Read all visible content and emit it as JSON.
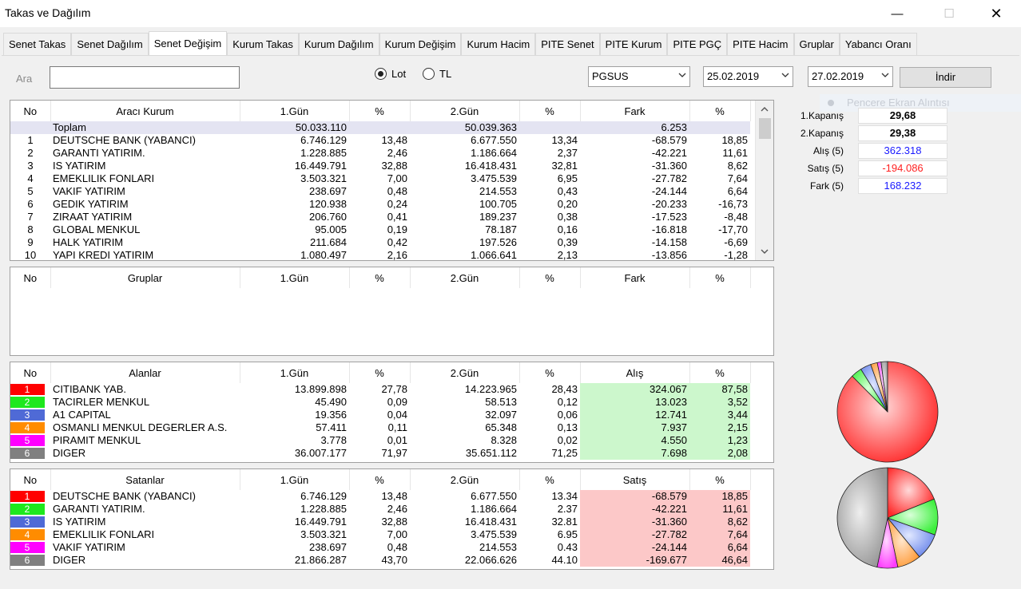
{
  "window": {
    "title": "Takas ve Dağılım",
    "min": "—",
    "max": "☐",
    "close": "✕"
  },
  "tabs": [
    {
      "label": "Senet Takas"
    },
    {
      "label": "Senet Dağılım"
    },
    {
      "label": "Senet Değişim",
      "active": true
    },
    {
      "label": "Kurum Takas"
    },
    {
      "label": "Kurum Dağılım"
    },
    {
      "label": "Kurum Değişim"
    },
    {
      "label": "Kurum Hacim"
    },
    {
      "label": "PITE Senet"
    },
    {
      "label": "PITE Kurum"
    },
    {
      "label": "PITE PGÇ"
    },
    {
      "label": "PITE Hacim"
    },
    {
      "label": "Gruplar"
    },
    {
      "label": "Yabancı Oranı"
    }
  ],
  "search": {
    "label": "Ara",
    "value": ""
  },
  "units": {
    "lot": "Lot",
    "tl": "TL",
    "selected": "lot"
  },
  "symbol": "PGSUS",
  "date1": "25.02.2019",
  "date2": "27.02.2019",
  "download_label": "İndir",
  "ghost_text": "Pencere Ekran Alıntısı",
  "main_table": {
    "headers": [
      "No",
      "Aracı Kurum",
      "1.Gün",
      "%",
      "2.Gün",
      "%",
      "Fark",
      "%"
    ],
    "total": [
      "",
      "Toplam",
      "50.033.110",
      "",
      "50.039.363",
      "",
      "6.253",
      ""
    ],
    "rows": [
      [
        "1",
        "DEUTSCHE BANK (YABANCI)",
        "6.746.129",
        "13,48",
        "6.677.550",
        "13,34",
        "-68.579",
        "18,85"
      ],
      [
        "2",
        "GARANTI YATIRIM.",
        "1.228.885",
        "2,46",
        "1.186.664",
        "2,37",
        "-42.221",
        "11,61"
      ],
      [
        "3",
        "IS YATIRIM",
        "16.449.791",
        "32,88",
        "16.418.431",
        "32,81",
        "-31.360",
        "8,62"
      ],
      [
        "4",
        "EMEKLILIK FONLARI",
        "3.503.321",
        "7,00",
        "3.475.539",
        "6,95",
        "-27.782",
        "7,64"
      ],
      [
        "5",
        "VAKIF YATIRIM",
        "238.697",
        "0,48",
        "214.553",
        "0,43",
        "-24.144",
        "6,64"
      ],
      [
        "6",
        "GEDIK YATIRIM",
        "120.938",
        "0,24",
        "100.705",
        "0,20",
        "-20.233",
        "-16,73"
      ],
      [
        "7",
        "ZIRAAT YATIRIM",
        "206.760",
        "0,41",
        "189.237",
        "0,38",
        "-17.523",
        "-8,48"
      ],
      [
        "8",
        "GLOBAL MENKUL",
        "95.005",
        "0,19",
        "78.187",
        "0,16",
        "-16.818",
        "-17,70"
      ],
      [
        "9",
        "HALK YATIRIM",
        "211.684",
        "0,42",
        "197.526",
        "0,39",
        "-14.158",
        "-6,69"
      ],
      [
        "10",
        "YAPI KREDI YATIRIM",
        "1.080.497",
        "2,16",
        "1.066.641",
        "2,13",
        "-13.856",
        "-1,28"
      ]
    ]
  },
  "groups_table": {
    "headers": [
      "No",
      "Gruplar",
      "1.Gün",
      "%",
      "2.Gün",
      "%",
      "Fark",
      "%"
    ]
  },
  "buyers_table": {
    "headers": [
      "No",
      "Alanlar",
      "1.Gün",
      "%",
      "2.Gün",
      "%",
      "Alış",
      "%"
    ],
    "rows": [
      [
        "1",
        "CITIBANK YAB.",
        "13.899.898",
        "27,78",
        "14.223.965",
        "28,43",
        "324.067",
        "87,58"
      ],
      [
        "2",
        "TACIRLER MENKUL",
        "45.490",
        "0,09",
        "58.513",
        "0,12",
        "13.023",
        "3,52"
      ],
      [
        "3",
        "A1 CAPITAL",
        "19.356",
        "0,04",
        "32.097",
        "0,06",
        "12.741",
        "3,44"
      ],
      [
        "4",
        "OSMANLI MENKUL DEGERLER A.S.",
        "57.411",
        "0,11",
        "65.348",
        "0,13",
        "7.937",
        "2,15"
      ],
      [
        "5",
        "PIRAMIT MENKUL",
        "3.778",
        "0,01",
        "8.328",
        "0,02",
        "4.550",
        "1,23"
      ],
      [
        "6",
        "DIGER",
        "36.007.177",
        "71,97",
        "35.651.112",
        "71,25",
        "7.698",
        "2,08"
      ]
    ]
  },
  "sellers_table": {
    "headers": [
      "No",
      "Satanlar",
      "1.Gün",
      "%",
      "2.Gün",
      "%",
      "Satış",
      "%"
    ],
    "rows": [
      [
        "1",
        "DEUTSCHE BANK (YABANCI)",
        "6.746.129",
        "13,48",
        "6.677.550",
        "13.34",
        "-68.579",
        "18,85"
      ],
      [
        "2",
        "GARANTI YATIRIM.",
        "1.228.885",
        "2,46",
        "1.186.664",
        "2.37",
        "-42.221",
        "11,61"
      ],
      [
        "3",
        "IS YATIRIM",
        "16.449.791",
        "32,88",
        "16.418.431",
        "32.81",
        "-31.360",
        "8,62"
      ],
      [
        "4",
        "EMEKLILIK FONLARI",
        "3.503.321",
        "7,00",
        "3.475.539",
        "6.95",
        "-27.782",
        "7,64"
      ],
      [
        "5",
        "VAKIF YATIRIM",
        "238.697",
        "0,48",
        "214.553",
        "0.43",
        "-24.144",
        "6,64"
      ],
      [
        "6",
        "DIGER",
        "21.866.287",
        "43,70",
        "22.066.626",
        "44.10",
        "-169.677",
        "46,64"
      ]
    ]
  },
  "rank_colors": [
    "#ff0000",
    "#1ee81e",
    "#4f6ad6",
    "#ff8c00",
    "#ff00ff",
    "#808080"
  ],
  "summary": [
    {
      "label": "1.Kapanış",
      "value": "29,68",
      "color": "#000000",
      "bold": true
    },
    {
      "label": "2.Kapanış",
      "value": "29,38",
      "color": "#000000",
      "bold": true
    },
    {
      "label": "Alış (5)",
      "value": "362.318",
      "color": "#1a1aff",
      "bold": false
    },
    {
      "label": "Satış (5)",
      "value": "-194.086",
      "color": "#ff2020",
      "bold": false
    },
    {
      "label": "Fark (5)",
      "value": "168.232",
      "color": "#1a1aff",
      "bold": false
    }
  ],
  "pie_buyers": [
    87.58,
    3.52,
    3.44,
    2.15,
    1.23,
    2.08
  ],
  "pie_sellers": [
    18.85,
    11.61,
    8.62,
    7.64,
    6.64,
    46.64
  ]
}
